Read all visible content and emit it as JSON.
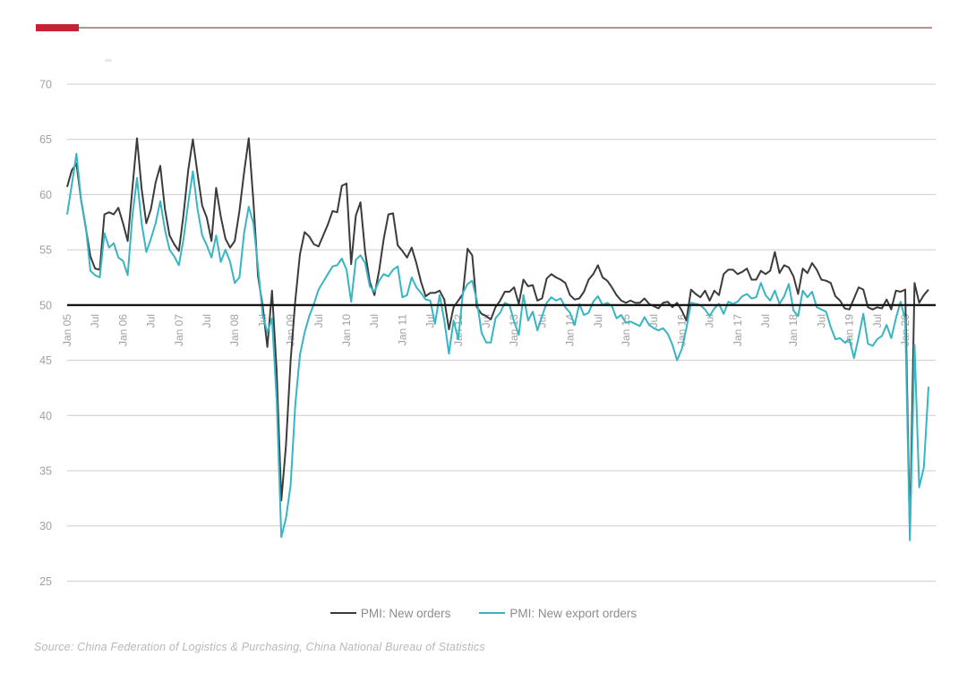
{
  "accent": {
    "bar_color": "#c32331",
    "line_color": "#b3948e"
  },
  "source": "Source: China Federation of Logistics & Purchasing, China National Bureau of Statistics",
  "chart_data": {
    "type": "line",
    "title": "",
    "xlabel": "",
    "ylabel": "",
    "x_unit": "month",
    "x_start": "Jan 2005",
    "x_end": "Jun 2020",
    "x_tick_labels": [
      "Jan 05",
      "Jul",
      "Jan 06",
      "Jul",
      "Jan 07",
      "Jul",
      "Jan 08",
      "Jul",
      "Jan 09",
      "Jul",
      "Jan 10",
      "Jul",
      "Jan 11",
      "Jul",
      "Jan 12",
      "Jul",
      "Jan 13",
      "Jul",
      "Jan 14",
      "Jul",
      "Jan 15",
      "Jul",
      "Jan 16",
      "Jul",
      "Jan 17",
      "Jul",
      "Jan 18",
      "Jul",
      "Jan 19",
      "Jul",
      "Jan 20"
    ],
    "x_tick_interval_months": 6,
    "ylim": [
      25,
      70
    ],
    "y_ticks": [
      70,
      65,
      60,
      55,
      50,
      45,
      40,
      35,
      30,
      25
    ],
    "grid": true,
    "grid_color": "#cccccc",
    "axis_label_color": "#a0a0a0",
    "reference_line": 50,
    "reference_line_color": "#161616",
    "legend_position": "bottom-center",
    "series": [
      {
        "name": "PMI: New orders",
        "color": "#3b3b3b",
        "values": [
          60.7,
          62.2,
          62.8,
          59.5,
          57.0,
          54.4,
          53.3,
          53.2,
          58.2,
          58.4,
          58.2,
          58.8,
          57.4,
          55.8,
          60.5,
          65.1,
          60.5,
          57.4,
          58.7,
          61.1,
          62.6,
          58.7,
          56.3,
          55.5,
          54.9,
          58.2,
          62.2,
          65.0,
          61.9,
          59.0,
          57.9,
          55.8,
          60.6,
          58.0,
          56.0,
          55.2,
          55.8,
          58.5,
          62.0,
          65.1,
          59.4,
          52.6,
          49.9,
          46.2,
          51.3,
          44.0,
          32.3,
          37.3,
          45.0,
          50.4,
          54.6,
          56.6,
          56.2,
          55.5,
          55.3,
          56.3,
          57.3,
          58.5,
          58.4,
          60.8,
          61.0,
          53.7,
          58.1,
          59.3,
          54.8,
          52.1,
          50.9,
          53.1,
          56.0,
          58.2,
          58.3,
          55.4,
          54.9,
          54.3,
          55.2,
          53.8,
          52.1,
          50.8,
          51.1,
          51.1,
          51.3,
          50.5,
          47.8,
          49.8,
          50.4,
          51.0,
          55.1,
          54.5,
          49.8,
          49.2,
          49.0,
          48.7,
          49.8,
          50.4,
          51.2,
          51.2,
          51.6,
          50.1,
          52.3,
          51.7,
          51.8,
          50.4,
          50.6,
          52.4,
          52.8,
          52.5,
          52.3,
          52.0,
          50.9,
          50.5,
          50.6,
          51.2,
          52.3,
          52.8,
          53.6,
          52.5,
          52.2,
          51.6,
          50.9,
          50.4,
          50.2,
          50.4,
          50.2,
          50.2,
          50.6,
          50.1,
          49.9,
          49.7,
          50.2,
          50.3,
          49.8,
          50.2,
          49.5,
          48.6,
          51.4,
          51.0,
          50.7,
          51.3,
          50.4,
          51.3,
          50.9,
          52.8,
          53.2,
          53.2,
          52.8,
          53.0,
          53.3,
          52.3,
          52.3,
          53.1,
          52.8,
          53.1,
          54.8,
          52.9,
          53.6,
          53.4,
          52.6,
          51.0,
          53.3,
          52.9,
          53.8,
          53.2,
          52.3,
          52.2,
          52.0,
          50.8,
          50.4,
          49.7,
          49.6,
          50.6,
          51.6,
          51.4,
          49.8,
          49.6,
          49.8,
          49.7,
          50.5,
          49.6,
          51.3,
          51.2,
          51.4,
          29.3,
          52.0,
          50.2,
          50.9,
          51.4
        ]
      },
      {
        "name": "PMI: New export orders",
        "color": "#38b5c2",
        "values": [
          58.2,
          60.9,
          63.7,
          59.5,
          57.1,
          53.1,
          52.7,
          52.5,
          56.5,
          55.2,
          55.6,
          54.3,
          54.0,
          52.7,
          58.0,
          61.5,
          57.4,
          54.8,
          56.0,
          57.4,
          59.4,
          56.8,
          55.0,
          54.4,
          53.6,
          56.0,
          59.2,
          62.1,
          58.7,
          56.3,
          55.4,
          54.3,
          56.3,
          53.9,
          55.0,
          53.9,
          52.0,
          52.5,
          56.5,
          58.9,
          57.4,
          53.4,
          49.1,
          47.5,
          48.8,
          41.4,
          29.0,
          30.7,
          33.7,
          41.0,
          45.5,
          47.5,
          49.0,
          50.1,
          51.4,
          52.1,
          52.8,
          53.5,
          53.6,
          54.2,
          53.2,
          50.3,
          54.1,
          54.5,
          53.8,
          51.7,
          51.2,
          52.2,
          52.8,
          52.6,
          53.2,
          53.5,
          50.7,
          50.9,
          52.5,
          51.6,
          51.1,
          50.5,
          50.4,
          48.3,
          50.9,
          48.6,
          45.6,
          48.6,
          46.9,
          51.1,
          51.9,
          52.2,
          50.4,
          47.5,
          46.6,
          46.6,
          48.8,
          49.3,
          50.2,
          50.0,
          48.5,
          47.3,
          50.9,
          48.6,
          49.4,
          47.7,
          49.0,
          50.2,
          50.7,
          50.4,
          50.6,
          49.8,
          49.3,
          48.2,
          50.1,
          49.1,
          49.3,
          50.3,
          50.8,
          50.0,
          50.2,
          49.9,
          48.8,
          49.1,
          48.4,
          48.5,
          48.3,
          48.1,
          48.9,
          48.2,
          47.9,
          47.7,
          47.9,
          47.4,
          46.4,
          45.0,
          46.0,
          47.9,
          50.2,
          50.1,
          50.0,
          49.6,
          49.0,
          49.7,
          50.1,
          49.2,
          50.3,
          50.1,
          50.3,
          50.8,
          51.0,
          50.6,
          50.7,
          52.0,
          50.9,
          50.4,
          51.3,
          50.1,
          50.8,
          51.9,
          49.5,
          49.0,
          51.3,
          50.7,
          51.2,
          49.8,
          49.6,
          49.4,
          48.0,
          46.9,
          47.0,
          46.6,
          46.9,
          45.2,
          47.1,
          49.2,
          46.5,
          46.3,
          46.9,
          47.2,
          48.2,
          47.0,
          48.8,
          50.3,
          48.7,
          28.7,
          46.4,
          33.5,
          35.3,
          42.6
        ]
      }
    ]
  }
}
